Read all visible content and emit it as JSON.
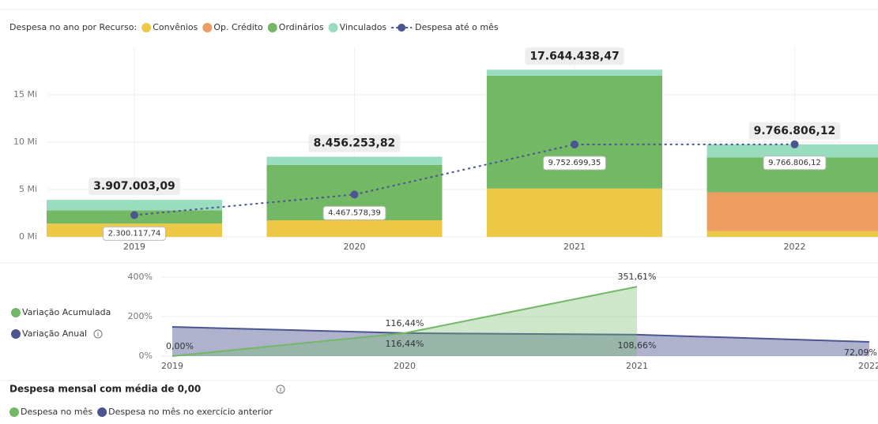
{
  "chart_data": [
    {
      "type": "bar",
      "stacked": true,
      "legend_title": "Despesa no ano por Recurso:",
      "categories": [
        "2019",
        "2020",
        "2021",
        "2022"
      ],
      "series": [
        {
          "name": "Convênios",
          "color": "#ecc846",
          "values": [
            1400000,
            1750000,
            5100000,
            600000
          ]
        },
        {
          "name": "Op. Crédito",
          "color": "#ee9c62",
          "values": [
            0,
            0,
            0,
            4100000
          ]
        },
        {
          "name": "Ordinários",
          "color": "#72b865",
          "values": [
            1400000,
            5850000,
            11900000,
            3700000
          ]
        },
        {
          "name": "Vinculados",
          "color": "#99dcc0",
          "values": [
            1107003.09,
            856253.82,
            644438.47,
            1366806.12
          ]
        },
        {
          "name": "Despesa até o mês",
          "type": "line",
          "dashed": true,
          "color": "#4b5590",
          "values": [
            2300117.74,
            4467578.39,
            9752699.35,
            9766806.12
          ],
          "value_labels": [
            "2.300.117,74",
            "4.467.578,39",
            "9.752.699,35",
            "9.766.806,12"
          ]
        }
      ],
      "totals": [
        3907003.09,
        8456253.82,
        17644438.47,
        9766806.12
      ],
      "total_labels": [
        "3.907.003,09",
        "8.456.253,82",
        "17.644.438,47",
        "9.766.806,12"
      ],
      "ylim": [
        0,
        20000000
      ],
      "yticks": [
        {
          "value": 0,
          "label": "0 Mi"
        },
        {
          "value": 5000000,
          "label": "5 Mi"
        },
        {
          "value": 10000000,
          "label": "10 Mi"
        },
        {
          "value": 15000000,
          "label": "15 Mi"
        }
      ],
      "grid": true
    },
    {
      "type": "area",
      "categories": [
        "2019",
        "2020",
        "2021",
        "2022"
      ],
      "series": [
        {
          "name": "Variação Acumulada",
          "color": "#72b865",
          "values": [
            0,
            116.44,
            351.61,
            null
          ],
          "value_labels": [
            "0,00%",
            "116,44%",
            "351,61%",
            null
          ]
        },
        {
          "name": "Variação Anual",
          "color": "#4b5590",
          "values": [
            148,
            116.44,
            108.66,
            72.09
          ],
          "value_labels": [
            null,
            "116,44%",
            "108,66%",
            "72,09%"
          ]
        }
      ],
      "ylim": [
        0,
        400
      ],
      "yticks": [
        {
          "value": 0,
          "label": "0%"
        },
        {
          "value": 200,
          "label": "200%"
        },
        {
          "value": 400,
          "label": "400%"
        }
      ]
    },
    {
      "type": "line",
      "title": "Despesa mensal com média de 0,00",
      "series": [
        {
          "name": "Despesa no mês",
          "color": "#72b865",
          "values": []
        },
        {
          "name": "Despesa no mês no exercício anterior",
          "color": "#4b5590",
          "values": []
        }
      ]
    }
  ]
}
